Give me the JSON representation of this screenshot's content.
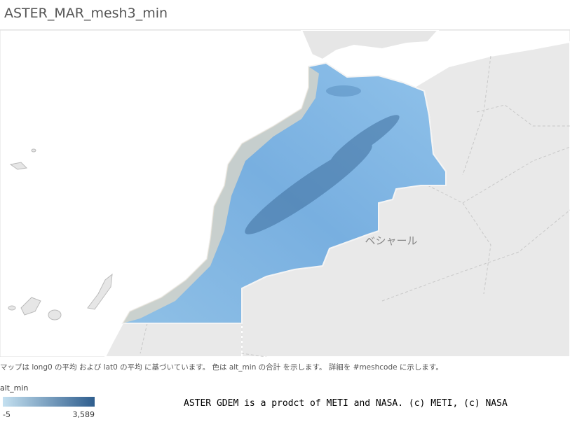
{
  "header": {
    "title": "ASTER_MAR_mesh3_min"
  },
  "map": {
    "place_label": "ベシャール"
  },
  "footnote": "マップは long0 の平均 および lat0 の平均 に基づいています。 色は alt_min の合計 を示します。 詳細を #meshcode に示します。",
  "legend": {
    "title": "alt_min",
    "min_label": "-5",
    "max_label": "3,589"
  },
  "credit": "ASTER GDEM is a prodct of METI and NASA. (c) METI, (c) NASA"
}
